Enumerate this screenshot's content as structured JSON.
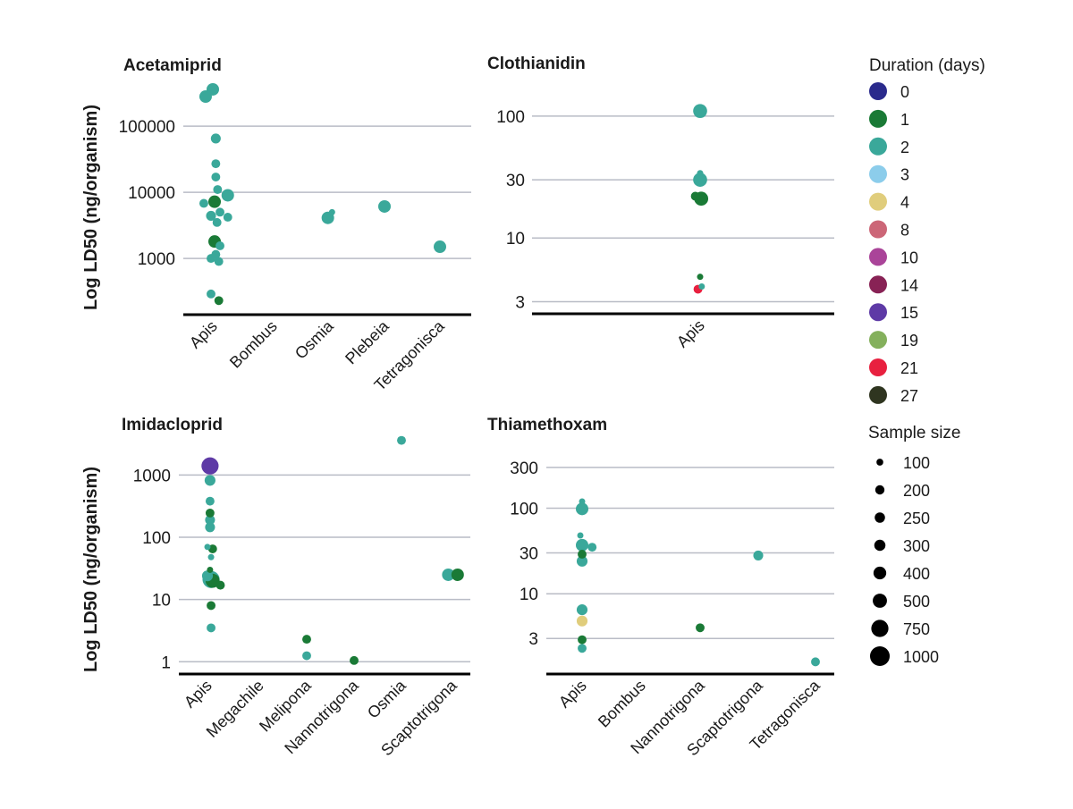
{
  "chart_data": [
    {
      "type": "scatter",
      "title": "Acetamiprid",
      "ylabel": "Log LD50 (ng/organism)",
      "yscale": "log",
      "ylim": [
        170,
        420000
      ],
      "yticks": [
        {
          "value": 1000,
          "label": "1000"
        },
        {
          "value": 10000,
          "label": "10000"
        },
        {
          "value": 100000,
          "label": "100000"
        }
      ],
      "categories": [
        "Apis",
        "Bombus",
        "Osmia",
        "Plebeia",
        "Tetragonisca"
      ],
      "points": [
        {
          "category": "Apis",
          "jitter": 0.0,
          "y": 360000,
          "duration": 2,
          "size": 400
        },
        {
          "category": "Apis",
          "jitter": -0.12,
          "y": 280000,
          "duration": 2,
          "size": 400
        },
        {
          "category": "Apis",
          "jitter": 0.05,
          "y": 65000,
          "duration": 2,
          "size": 250
        },
        {
          "category": "Apis",
          "jitter": 0.05,
          "y": 27000,
          "duration": 2,
          "size": 200
        },
        {
          "category": "Apis",
          "jitter": 0.05,
          "y": 17000,
          "duration": 2,
          "size": 200
        },
        {
          "category": "Apis",
          "jitter": 0.08,
          "y": 11000,
          "duration": 2,
          "size": 200
        },
        {
          "category": "Apis",
          "jitter": 0.25,
          "y": 9000,
          "duration": 2,
          "size": 400
        },
        {
          "category": "Apis",
          "jitter": 0.03,
          "y": 7200,
          "duration": 1,
          "size": 400
        },
        {
          "category": "Apis",
          "jitter": -0.15,
          "y": 6800,
          "duration": 2,
          "size": 200
        },
        {
          "category": "Apis",
          "jitter": 0.12,
          "y": 5000,
          "duration": 2,
          "size": 200
        },
        {
          "category": "Apis",
          "jitter": -0.03,
          "y": 4400,
          "duration": 2,
          "size": 250
        },
        {
          "category": "Apis",
          "jitter": 0.25,
          "y": 4200,
          "duration": 2,
          "size": 200
        },
        {
          "category": "Apis",
          "jitter": 0.07,
          "y": 3500,
          "duration": 2,
          "size": 200
        },
        {
          "category": "Apis",
          "jitter": 0.03,
          "y": 1800,
          "duration": 1,
          "size": 400
        },
        {
          "category": "Apis",
          "jitter": 0.12,
          "y": 1550,
          "duration": 2,
          "size": 200
        },
        {
          "category": "Apis",
          "jitter": 0.05,
          "y": 1150,
          "duration": 2,
          "size": 200
        },
        {
          "category": "Apis",
          "jitter": -0.03,
          "y": 1000,
          "duration": 2,
          "size": 200
        },
        {
          "category": "Apis",
          "jitter": 0.1,
          "y": 900,
          "duration": 2,
          "size": 200
        },
        {
          "category": "Apis",
          "jitter": -0.03,
          "y": 290,
          "duration": 2,
          "size": 200
        },
        {
          "category": "Apis",
          "jitter": 0.1,
          "y": 230,
          "duration": 1,
          "size": 200
        },
        {
          "category": "Osmia",
          "jitter": 0.05,
          "y": 5000,
          "duration": 2,
          "size": 100
        },
        {
          "category": "Osmia",
          "jitter": -0.02,
          "y": 4100,
          "duration": 2,
          "size": 400
        },
        {
          "category": "Plebeia",
          "jitter": 0.0,
          "y": 6100,
          "duration": 2,
          "size": 400
        },
        {
          "category": "Tetragonisca",
          "jitter": 0.0,
          "y": 1500,
          "duration": 2,
          "size": 400
        }
      ]
    },
    {
      "type": "scatter",
      "title": "Clothianidin",
      "ylabel": "",
      "yscale": "log",
      "ylim": [
        2.6,
        180
      ],
      "yticks": [
        {
          "value": 3,
          "label": "3"
        },
        {
          "value": 10,
          "label": "10"
        },
        {
          "value": 30,
          "label": "30"
        },
        {
          "value": 100,
          "label": "100"
        }
      ],
      "categories": [
        "Apis"
      ],
      "points": [
        {
          "category": "Apis",
          "jitter": 0.0,
          "y": 110,
          "duration": 2,
          "size": 500
        },
        {
          "category": "Apis",
          "jitter": 0.0,
          "y": 34,
          "duration": 2,
          "size": 100
        },
        {
          "category": "Apis",
          "jitter": 0.0,
          "y": 30,
          "duration": 2,
          "size": 500
        },
        {
          "category": "Apis",
          "jitter": -0.09,
          "y": 22,
          "duration": 1,
          "size": 200
        },
        {
          "category": "Apis",
          "jitter": 0.02,
          "y": 21,
          "duration": 1,
          "size": 500
        },
        {
          "category": "Apis",
          "jitter": 0.0,
          "y": 4.8,
          "duration": 1,
          "size": 100
        },
        {
          "category": "Apis",
          "jitter": 0.03,
          "y": 4.0,
          "duration": 2,
          "size": 100
        },
        {
          "category": "Apis",
          "jitter": -0.04,
          "y": 3.8,
          "duration": 21,
          "size": 200
        }
      ]
    },
    {
      "type": "scatter",
      "title": "Imidacloprid",
      "ylabel": "Log LD50 (ng/organism)",
      "yscale": "log",
      "ylim": [
        0.75,
        4200
      ],
      "yticks": [
        {
          "value": 1,
          "label": "1"
        },
        {
          "value": 10,
          "label": "10"
        },
        {
          "value": 100,
          "label": "100"
        },
        {
          "value": 1000,
          "label": "1000"
        }
      ],
      "categories": [
        "Apis",
        "Megachile",
        "Melipona",
        "Nannotrigona",
        "Osmia",
        "Scaptotrigona"
      ],
      "points": [
        {
          "category": "Apis",
          "jitter": 0.05,
          "y": 1400,
          "duration": 15,
          "size": 750
        },
        {
          "category": "Apis",
          "jitter": 0.05,
          "y": 820,
          "duration": 2,
          "size": 300
        },
        {
          "category": "Apis",
          "jitter": 0.05,
          "y": 380,
          "duration": 2,
          "size": 200
        },
        {
          "category": "Apis",
          "jitter": 0.05,
          "y": 245,
          "duration": 1,
          "size": 200
        },
        {
          "category": "Apis",
          "jitter": 0.05,
          "y": 190,
          "duration": 2,
          "size": 250
        },
        {
          "category": "Apis",
          "jitter": 0.05,
          "y": 145,
          "duration": 2,
          "size": 250
        },
        {
          "category": "Apis",
          "jitter": 0.0,
          "y": 70,
          "duration": 2,
          "size": 100
        },
        {
          "category": "Apis",
          "jitter": 0.1,
          "y": 65,
          "duration": 1,
          "size": 200
        },
        {
          "category": "Apis",
          "jitter": 0.07,
          "y": 48,
          "duration": 2,
          "size": 100
        },
        {
          "category": "Apis",
          "jitter": 0.05,
          "y": 30,
          "duration": 1,
          "size": 100
        },
        {
          "category": "Apis",
          "jitter": 0.0,
          "y": 24,
          "duration": 2,
          "size": 300
        },
        {
          "category": "Apis",
          "jitter": 0.07,
          "y": 21,
          "duration": 2,
          "size": 750
        },
        {
          "category": "Apis",
          "jitter": 0.1,
          "y": 20,
          "duration": 1,
          "size": 500
        },
        {
          "category": "Apis",
          "jitter": 0.25,
          "y": 17,
          "duration": 1,
          "size": 200
        },
        {
          "category": "Apis",
          "jitter": 0.07,
          "y": 8,
          "duration": 1,
          "size": 200
        },
        {
          "category": "Apis",
          "jitter": 0.07,
          "y": 3.5,
          "duration": 2,
          "size": 200
        },
        {
          "category": "Melipona",
          "jitter": 0.0,
          "y": 2.3,
          "duration": 1,
          "size": 200
        },
        {
          "category": "Melipona",
          "jitter": 0.0,
          "y": 1.25,
          "duration": 2,
          "size": 200
        },
        {
          "category": "Nannotrigona",
          "jitter": 0.0,
          "y": 1.05,
          "duration": 1,
          "size": 200
        },
        {
          "category": "Osmia",
          "jitter": 0.0,
          "y": 3600,
          "duration": 2,
          "size": 200
        },
        {
          "category": "Scaptotrigona",
          "jitter": -0.08,
          "y": 25,
          "duration": 2,
          "size": 400
        },
        {
          "category": "Scaptotrigona",
          "jitter": 0.1,
          "y": 25,
          "duration": 1,
          "size": 400
        }
      ]
    },
    {
      "type": "scatter",
      "title": "Thiamethoxam",
      "ylabel": "",
      "yscale": "log",
      "ylim": [
        1.3,
        520
      ],
      "yticks": [
        {
          "value": 3,
          "label": "3"
        },
        {
          "value": 10,
          "label": "10"
        },
        {
          "value": 30,
          "label": "30"
        },
        {
          "value": 100,
          "label": "100"
        },
        {
          "value": 300,
          "label": "300"
        }
      ],
      "categories": [
        "Apis",
        "Bombus",
        "Nannotrigona",
        "Scaptotrigona",
        "Tetragonisca"
      ],
      "points": [
        {
          "category": "Apis",
          "jitter": 0.0,
          "y": 120,
          "duration": 2,
          "size": 100
        },
        {
          "category": "Apis",
          "jitter": 0.0,
          "y": 98,
          "duration": 2,
          "size": 400
        },
        {
          "category": "Apis",
          "jitter": -0.03,
          "y": 48,
          "duration": 2,
          "size": 100
        },
        {
          "category": "Apis",
          "jitter": 0.0,
          "y": 37,
          "duration": 2,
          "size": 400
        },
        {
          "category": "Apis",
          "jitter": 0.17,
          "y": 35,
          "duration": 2,
          "size": 200
        },
        {
          "category": "Apis",
          "jitter": 0.0,
          "y": 29,
          "duration": 1,
          "size": 200
        },
        {
          "category": "Apis",
          "jitter": 0.0,
          "y": 24,
          "duration": 2,
          "size": 300
        },
        {
          "category": "Apis",
          "jitter": 0.0,
          "y": 6.5,
          "duration": 2,
          "size": 300
        },
        {
          "category": "Apis",
          "jitter": 0.0,
          "y": 4.8,
          "duration": 4,
          "size": 300
        },
        {
          "category": "Apis",
          "jitter": 0.0,
          "y": 2.9,
          "duration": 1,
          "size": 200
        },
        {
          "category": "Apis",
          "jitter": 0.0,
          "y": 2.3,
          "duration": 2,
          "size": 200
        },
        {
          "category": "Nannotrigona",
          "jitter": 0.0,
          "y": 4.0,
          "duration": 1,
          "size": 200
        },
        {
          "category": "Scaptotrigona",
          "jitter": 0.0,
          "y": 28,
          "duration": 2,
          "size": 250
        },
        {
          "category": "Tetragonisca",
          "jitter": 0.0,
          "y": 1.6,
          "duration": 2,
          "size": 200
        }
      ]
    }
  ],
  "legend": {
    "duration_title": "Duration (days)",
    "durations": [
      {
        "value": 0,
        "label": "0",
        "color": "#2a2a8c"
      },
      {
        "value": 1,
        "label": "1",
        "color": "#1a7a36"
      },
      {
        "value": 2,
        "label": "2",
        "color": "#3aa89a"
      },
      {
        "value": 3,
        "label": "3",
        "color": "#8ccdeb"
      },
      {
        "value": 4,
        "label": "4",
        "color": "#e0cd7c"
      },
      {
        "value": 8,
        "label": "8",
        "color": "#cc6677"
      },
      {
        "value": 10,
        "label": "10",
        "color": "#aa4499"
      },
      {
        "value": 14,
        "label": "14",
        "color": "#882255"
      },
      {
        "value": 15,
        "label": "15",
        "color": "#5e3aa6"
      },
      {
        "value": 19,
        "label": "19",
        "color": "#84b05c"
      },
      {
        "value": 21,
        "label": "21",
        "color": "#e8203f"
      },
      {
        "value": 27,
        "label": "27",
        "color": "#2f3520"
      }
    ],
    "size_title": "Sample size",
    "sizes": [
      {
        "value": 100,
        "label": "100"
      },
      {
        "value": 200,
        "label": "200"
      },
      {
        "value": 250,
        "label": "250"
      },
      {
        "value": 300,
        "label": "300"
      },
      {
        "value": 400,
        "label": "400"
      },
      {
        "value": 500,
        "label": "500"
      },
      {
        "value": 750,
        "label": "750"
      },
      {
        "value": 1000,
        "label": "1000"
      }
    ]
  }
}
